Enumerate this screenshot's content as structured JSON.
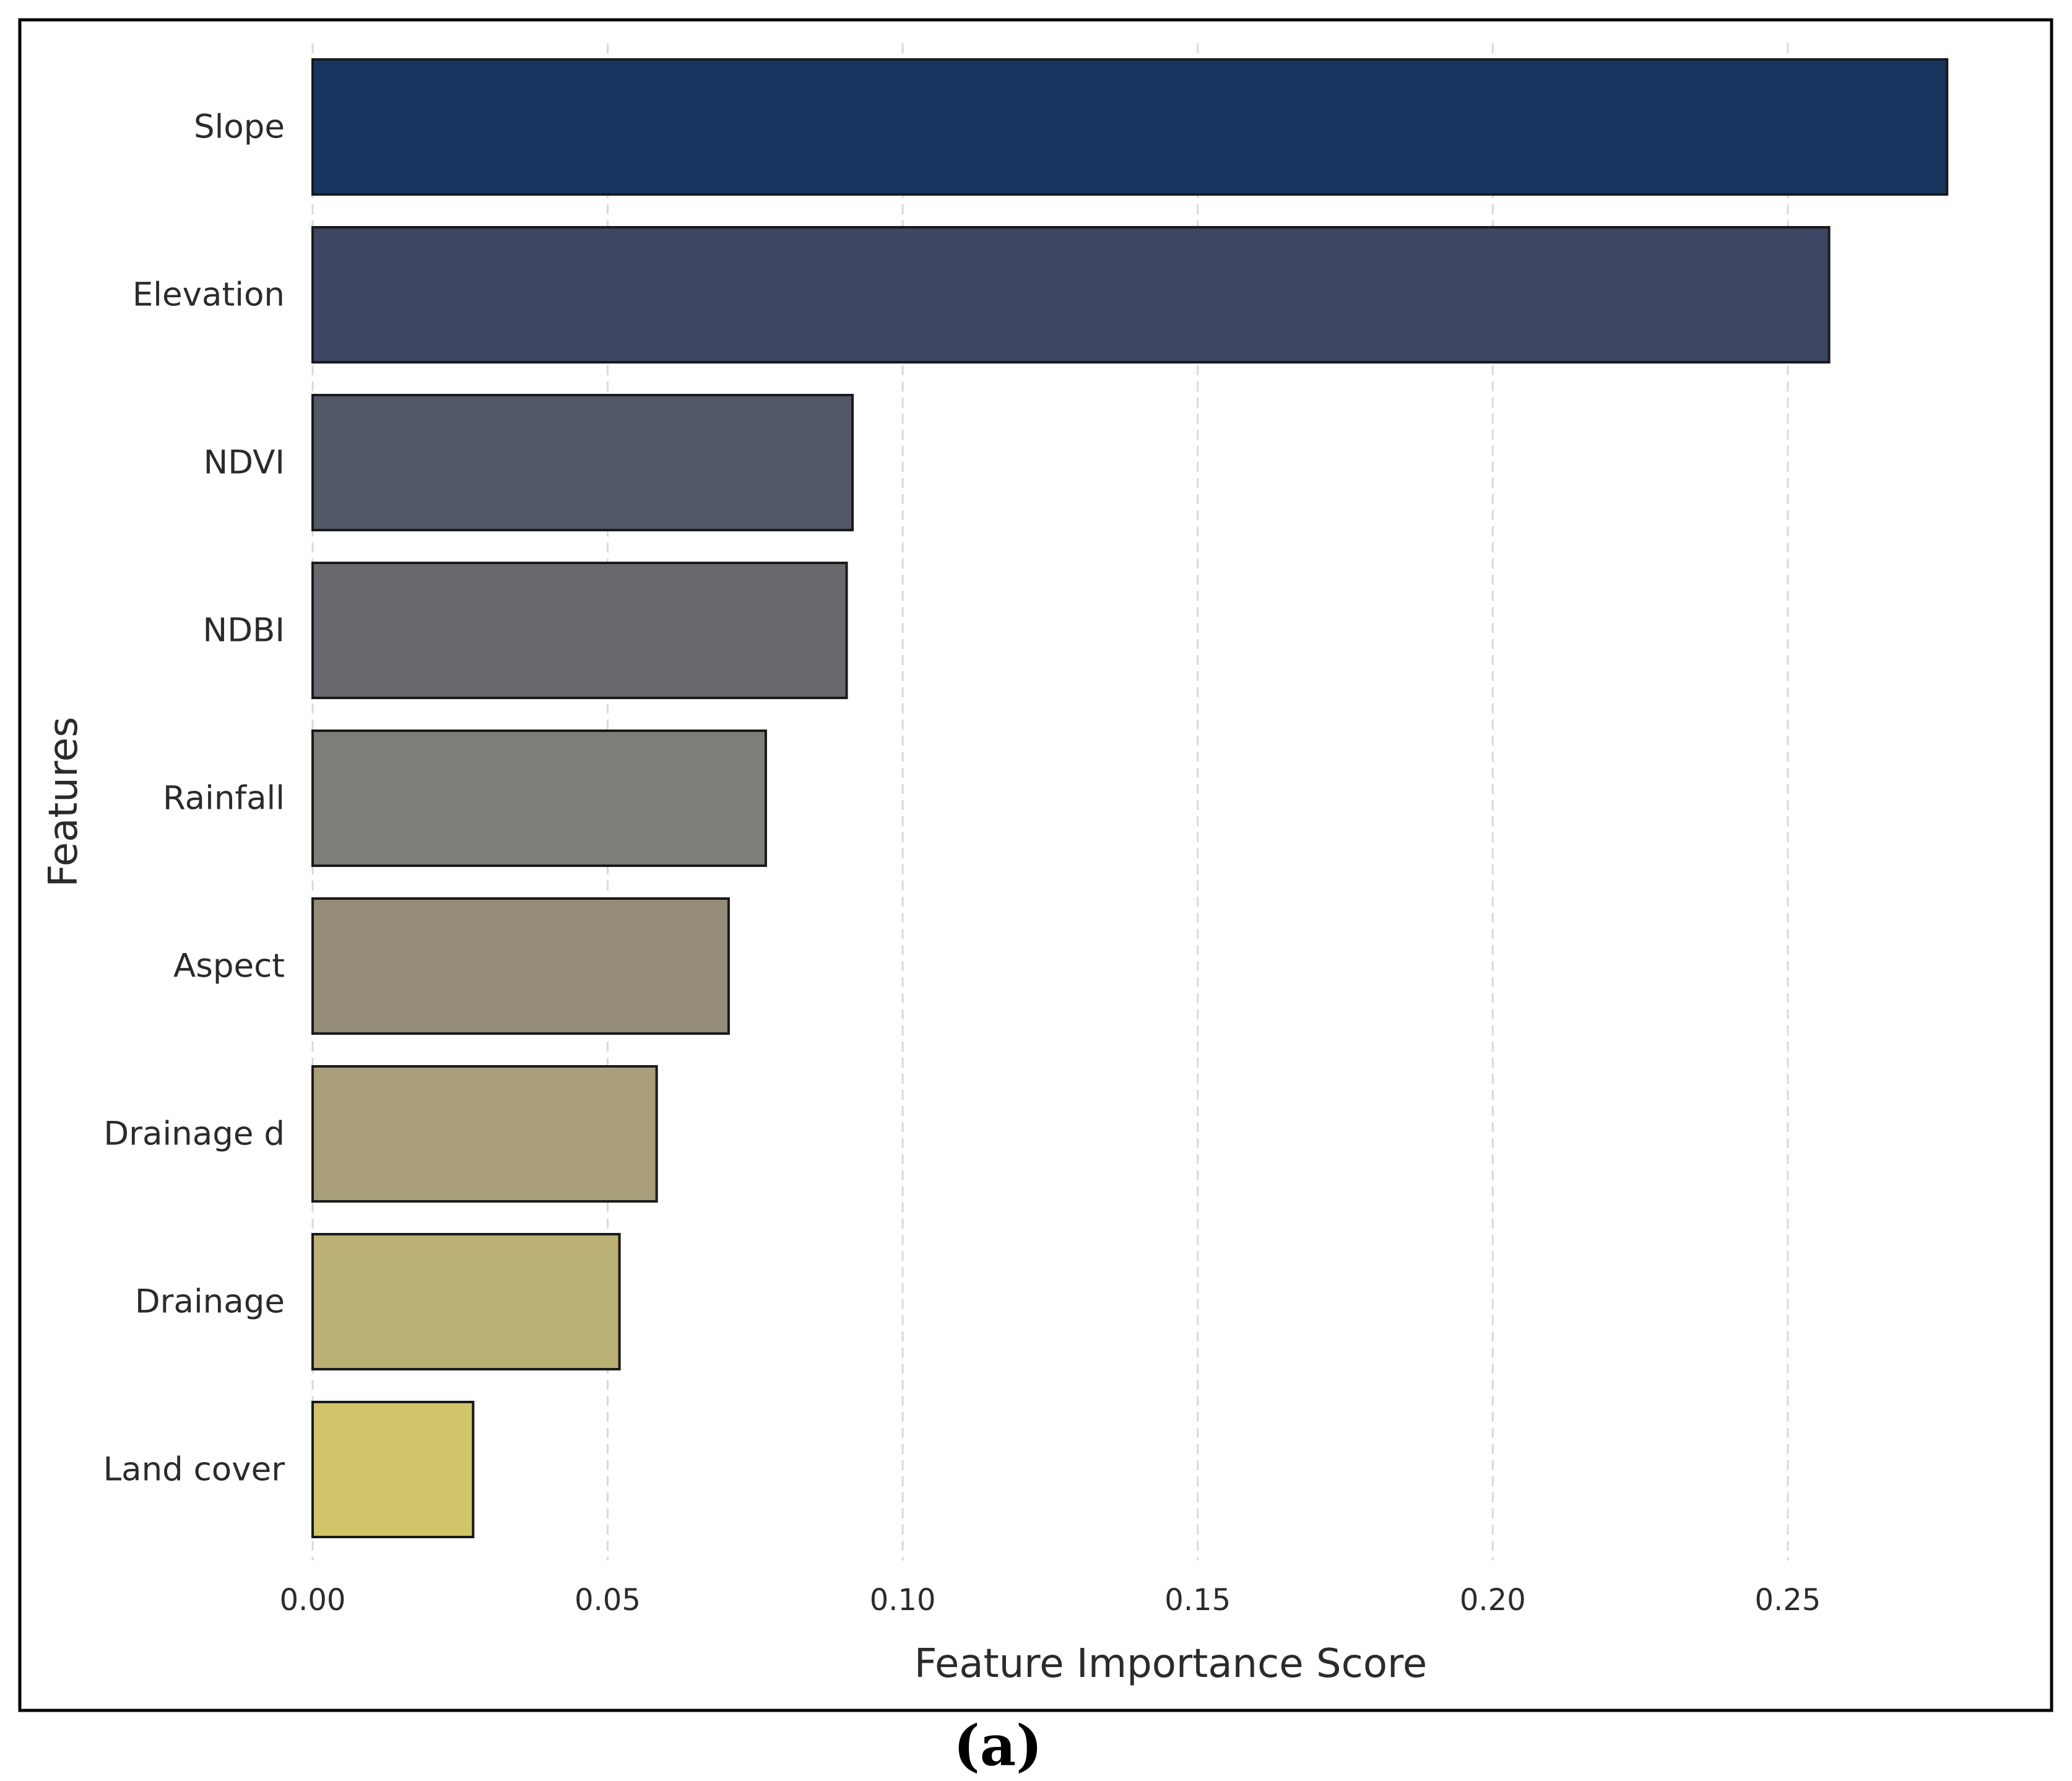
{
  "chart_data": {
    "type": "bar",
    "orientation": "horizontal",
    "title": "",
    "xlabel": "Feature Importance Score",
    "ylabel": "Features",
    "panel_label": "(a)",
    "categories": [
      "Slope",
      "Elevation",
      "NDVI",
      "NDBI",
      "Rainfall",
      "Aspect",
      "Drainage d",
      "Drainage",
      "Land cover"
    ],
    "values": [
      0.277,
      0.257,
      0.0915,
      0.0905,
      0.0768,
      0.0705,
      0.0583,
      0.052,
      0.0272
    ],
    "colors": [
      "#17355f",
      "#3d4763",
      "#525867",
      "#68696e",
      "#7e7d78",
      "#958d7a",
      "#a89e79",
      "#bcb174",
      "#d2c468"
    ],
    "xlim": [
      0,
      0.2775
    ],
    "xticks": [
      0,
      0.05,
      0.1,
      0.15,
      0.2,
      0.25
    ],
    "xtick_labels": [
      "0.00",
      "0.05",
      "0.10",
      "0.15",
      "0.20",
      "0.25"
    ],
    "grid": "vertical dashed",
    "legend": "none"
  }
}
